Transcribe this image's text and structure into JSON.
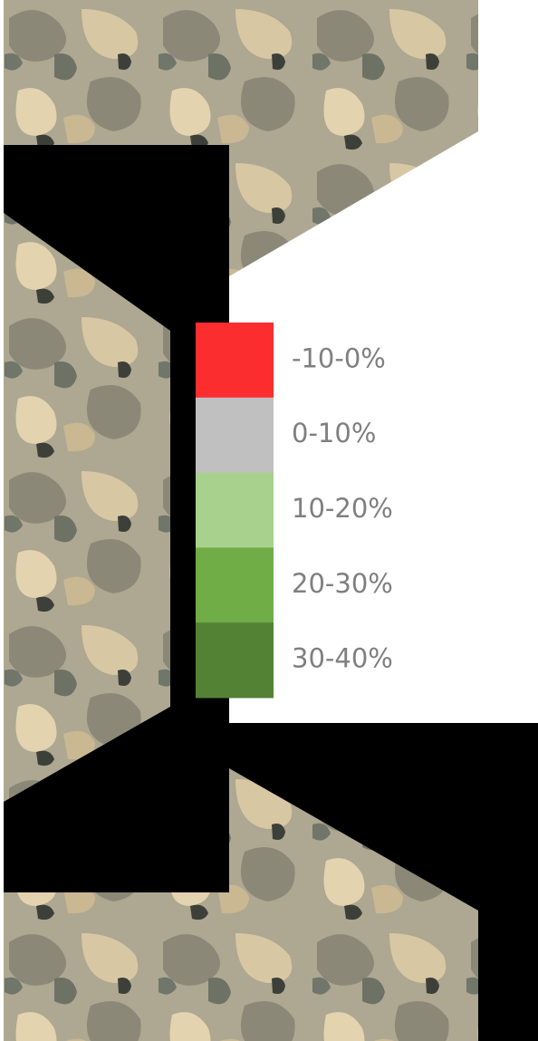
{
  "legend": {
    "items": [
      {
        "label": "-10-0%",
        "color": "#fb2d2f"
      },
      {
        "label": "0-10%",
        "color": "#c0c0c0"
      },
      {
        "label": "10-20%",
        "color": "#a9d18e"
      },
      {
        "label": "20-30%",
        "color": "#70ad47"
      },
      {
        "label": "30-40%",
        "color": "#548235"
      }
    ]
  }
}
